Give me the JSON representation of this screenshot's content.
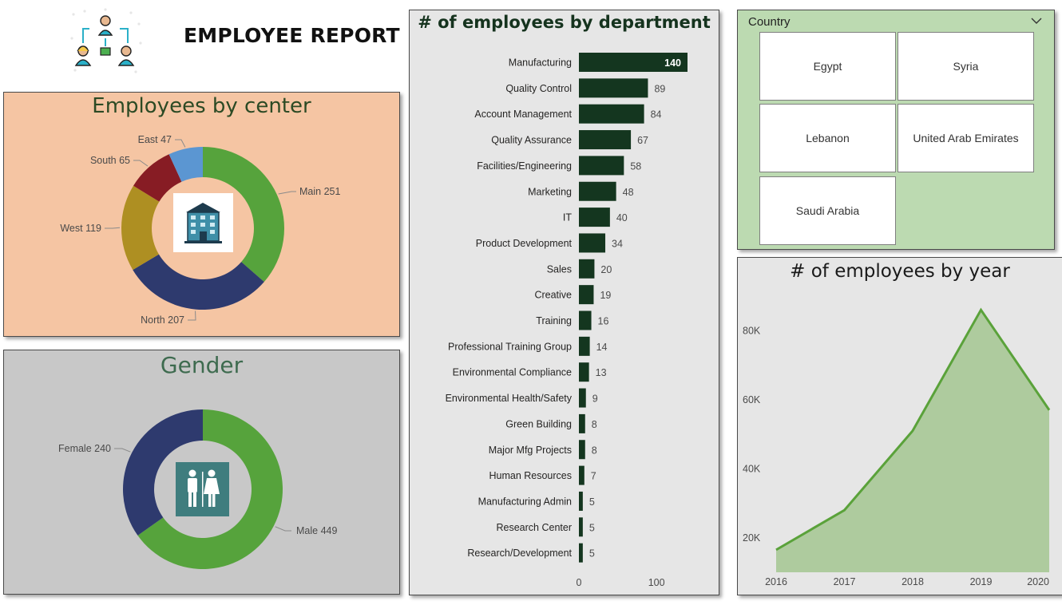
{
  "header": {
    "title": "EMPLOYEE REPORT"
  },
  "icons": {
    "logo": "team-org-icon",
    "center_icon": "building-icon",
    "gender_icon": "restroom-icon",
    "slicer_chevron": "chevron-down-icon"
  },
  "colors": {
    "center_bg": "#f5c5a3",
    "gender_bg": "#c8c8c8",
    "country_bg": "#bcdab1",
    "bar": "#14361f",
    "area_line": "#5aa23a",
    "area_fill": "#aecb9e",
    "slice_green": "#56a33c",
    "slice_navy": "#2e3a6e",
    "slice_olive": "#ae8f22",
    "slice_maroon": "#871c24",
    "slice_blue": "#5b96d2"
  },
  "country_slicer": {
    "header": "Country",
    "options": [
      "Egypt",
      "Syria",
      "Lebanon",
      "United Arab Emirates",
      "Saudi Arabia"
    ]
  },
  "chart_data": [
    {
      "id": "center",
      "type": "pie",
      "subtype": "donut",
      "title": "Employees by center",
      "categories": [
        "Main",
        "North",
        "West",
        "South",
        "East"
      ],
      "values": [
        251,
        207,
        119,
        65,
        47
      ],
      "labels": [
        "Main 251",
        "North 207",
        "West 119",
        "South 65",
        "East 47"
      ]
    },
    {
      "id": "gender",
      "type": "pie",
      "subtype": "donut",
      "title": "Gender",
      "categories": [
        "Male",
        "Female"
      ],
      "values": [
        449,
        240
      ],
      "labels": [
        "Male 449",
        "Female 240"
      ]
    },
    {
      "id": "department",
      "type": "bar",
      "orientation": "horizontal",
      "title": "# of employees by department",
      "categories": [
        "Manufacturing",
        "Quality Control",
        "Account Management",
        "Quality Assurance",
        "Facilities/Engineering",
        "Marketing",
        "IT",
        "Product Development",
        "Sales",
        "Creative",
        "Training",
        "Professional Training Group",
        "Environmental Compliance",
        "Environmental Health/Safety",
        "Green Building",
        "Major Mfg Projects",
        "Human Resources",
        "Manufacturing Admin",
        "Research Center",
        "Research/Development"
      ],
      "values": [
        140,
        89,
        84,
        67,
        58,
        48,
        40,
        34,
        20,
        19,
        16,
        14,
        13,
        9,
        8,
        8,
        7,
        5,
        5,
        5
      ],
      "xlim": [
        0,
        140
      ],
      "xticks": [
        "0",
        "100"
      ]
    },
    {
      "id": "year",
      "type": "area",
      "title": "# of employees by year",
      "x": [
        "2016",
        "2017",
        "2018",
        "2019",
        "2020"
      ],
      "values": [
        16500,
        28000,
        51000,
        86000,
        57000
      ],
      "ylim": [
        10000,
        90000
      ],
      "yticks": [
        "20K",
        "40K",
        "60K",
        "80K"
      ],
      "ytick_values": [
        20000,
        40000,
        60000,
        80000
      ]
    }
  ]
}
